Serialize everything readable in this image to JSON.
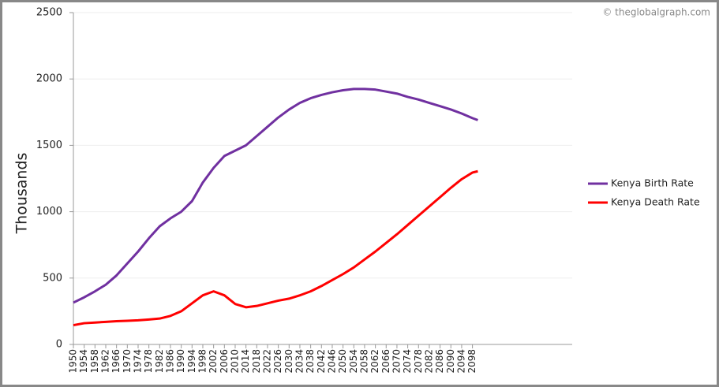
{
  "chart_data": {
    "type": "line",
    "watermark": "© theglobalgraph.com",
    "y_label": "Thousands",
    "x": [
      1950,
      1954,
      1958,
      1962,
      1966,
      1970,
      1974,
      1978,
      1982,
      1986,
      1990,
      1994,
      1998,
      2002,
      2006,
      2010,
      2014,
      2018,
      2022,
      2026,
      2030,
      2034,
      2038,
      2042,
      2046,
      2050,
      2054,
      2058,
      2062,
      2066,
      2070,
      2074,
      2078,
      2082,
      2086,
      2090,
      2094,
      2098,
      2100
    ],
    "series": [
      {
        "name": "Kenya Birth Rate",
        "color": "#7030a0",
        "values": [
          315,
          355,
          400,
          450,
          520,
          610,
          700,
          800,
          890,
          950,
          1000,
          1080,
          1220,
          1330,
          1420,
          1460,
          1500,
          1570,
          1640,
          1710,
          1770,
          1820,
          1855,
          1880,
          1900,
          1915,
          1925,
          1925,
          1920,
          1905,
          1890,
          1865,
          1845,
          1820,
          1795,
          1770,
          1740,
          1705,
          1690
        ]
      },
      {
        "name": "Kenya Death Rate",
        "color": "#ff0000",
        "values": [
          145,
          160,
          165,
          170,
          175,
          178,
          182,
          188,
          195,
          215,
          250,
          310,
          370,
          400,
          370,
          305,
          280,
          290,
          310,
          330,
          345,
          370,
          400,
          440,
          485,
          530,
          580,
          640,
          700,
          765,
          830,
          900,
          970,
          1040,
          1110,
          1180,
          1245,
          1295,
          1305
        ]
      }
    ],
    "xlim": [
      1950,
      2135
    ],
    "xticks": [
      1950,
      1954,
      1958,
      1962,
      1966,
      1970,
      1974,
      1978,
      1982,
      1986,
      1990,
      1994,
      1998,
      2002,
      2006,
      2010,
      2014,
      2018,
      2022,
      2026,
      2030,
      2034,
      2038,
      2042,
      2046,
      2050,
      2054,
      2058,
      2062,
      2066,
      2070,
      2074,
      2078,
      2082,
      2086,
      2090,
      2094,
      2098
    ],
    "ylim": [
      0,
      2500
    ],
    "yticks": [
      0,
      500,
      1000,
      1500,
      2000,
      2500
    ],
    "grid": true,
    "legend": "right"
  }
}
